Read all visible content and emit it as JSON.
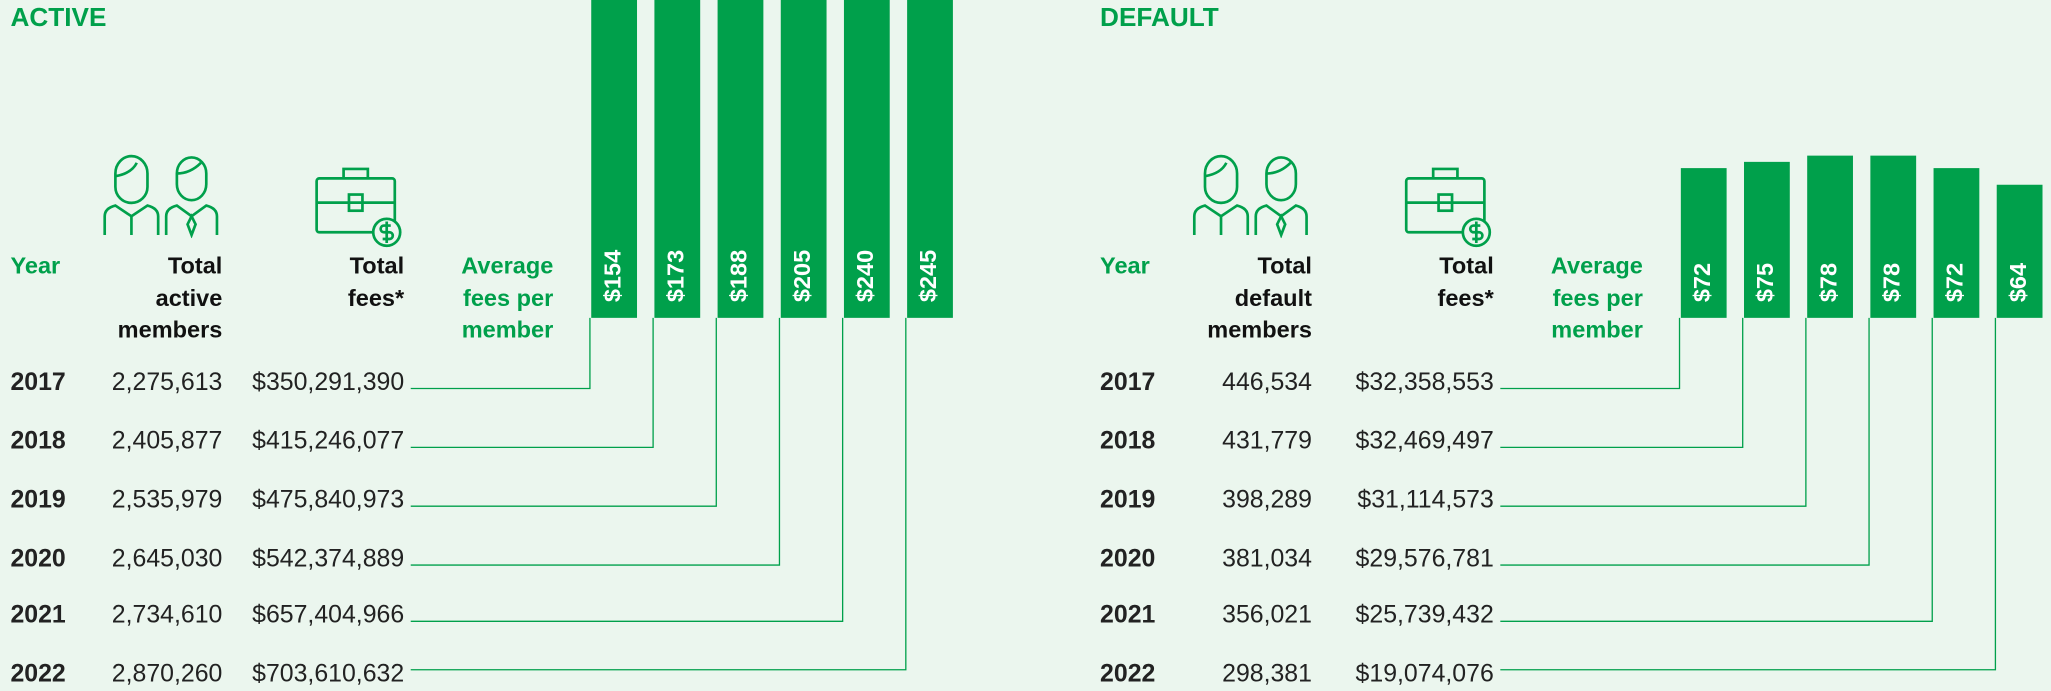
{
  "chart_data": [
    {
      "type": "bar",
      "title": "ACTIVE",
      "headers": [
        "Year",
        "Total active members",
        "Total fees*",
        "Average fees per member"
      ],
      "categories": [
        "2017",
        "2018",
        "2019",
        "2020",
        "2021",
        "2022"
      ],
      "members": [
        "2,275,613",
        "2,405,877",
        "2,535,979",
        "2,645,030",
        "2,734,610",
        "2,870,260"
      ],
      "fees": [
        "$350,291,390",
        "$415,246,077",
        "$475,840,973",
        "$542,374,889",
        "$657,404,966",
        "$703,610,632"
      ],
      "values": [
        154,
        173,
        188,
        205,
        240,
        245
      ],
      "value_labels": [
        "$154",
        "$173",
        "$188",
        "$205",
        "$240",
        "$245"
      ],
      "color": "#00a04b"
    },
    {
      "type": "bar",
      "title": "DEFAULT",
      "headers": [
        "Year",
        "Total default members",
        "Total fees*",
        "Average fees per member"
      ],
      "categories": [
        "2017",
        "2018",
        "2019",
        "2020",
        "2021",
        "2022"
      ],
      "members": [
        "446,534",
        "431,779",
        "398,289",
        "381,034",
        "356,021",
        "298,381"
      ],
      "fees": [
        "$32,358,553",
        "$32,469,497",
        "$31,114,573",
        "$29,576,781",
        "$25,739,432",
        "$19,074,076"
      ],
      "values": [
        72,
        75,
        78,
        78,
        72,
        64
      ],
      "value_labels": [
        "$72",
        "$75",
        "$78",
        "$78",
        "$72",
        "$64"
      ],
      "color": "#00a04b"
    }
  ]
}
